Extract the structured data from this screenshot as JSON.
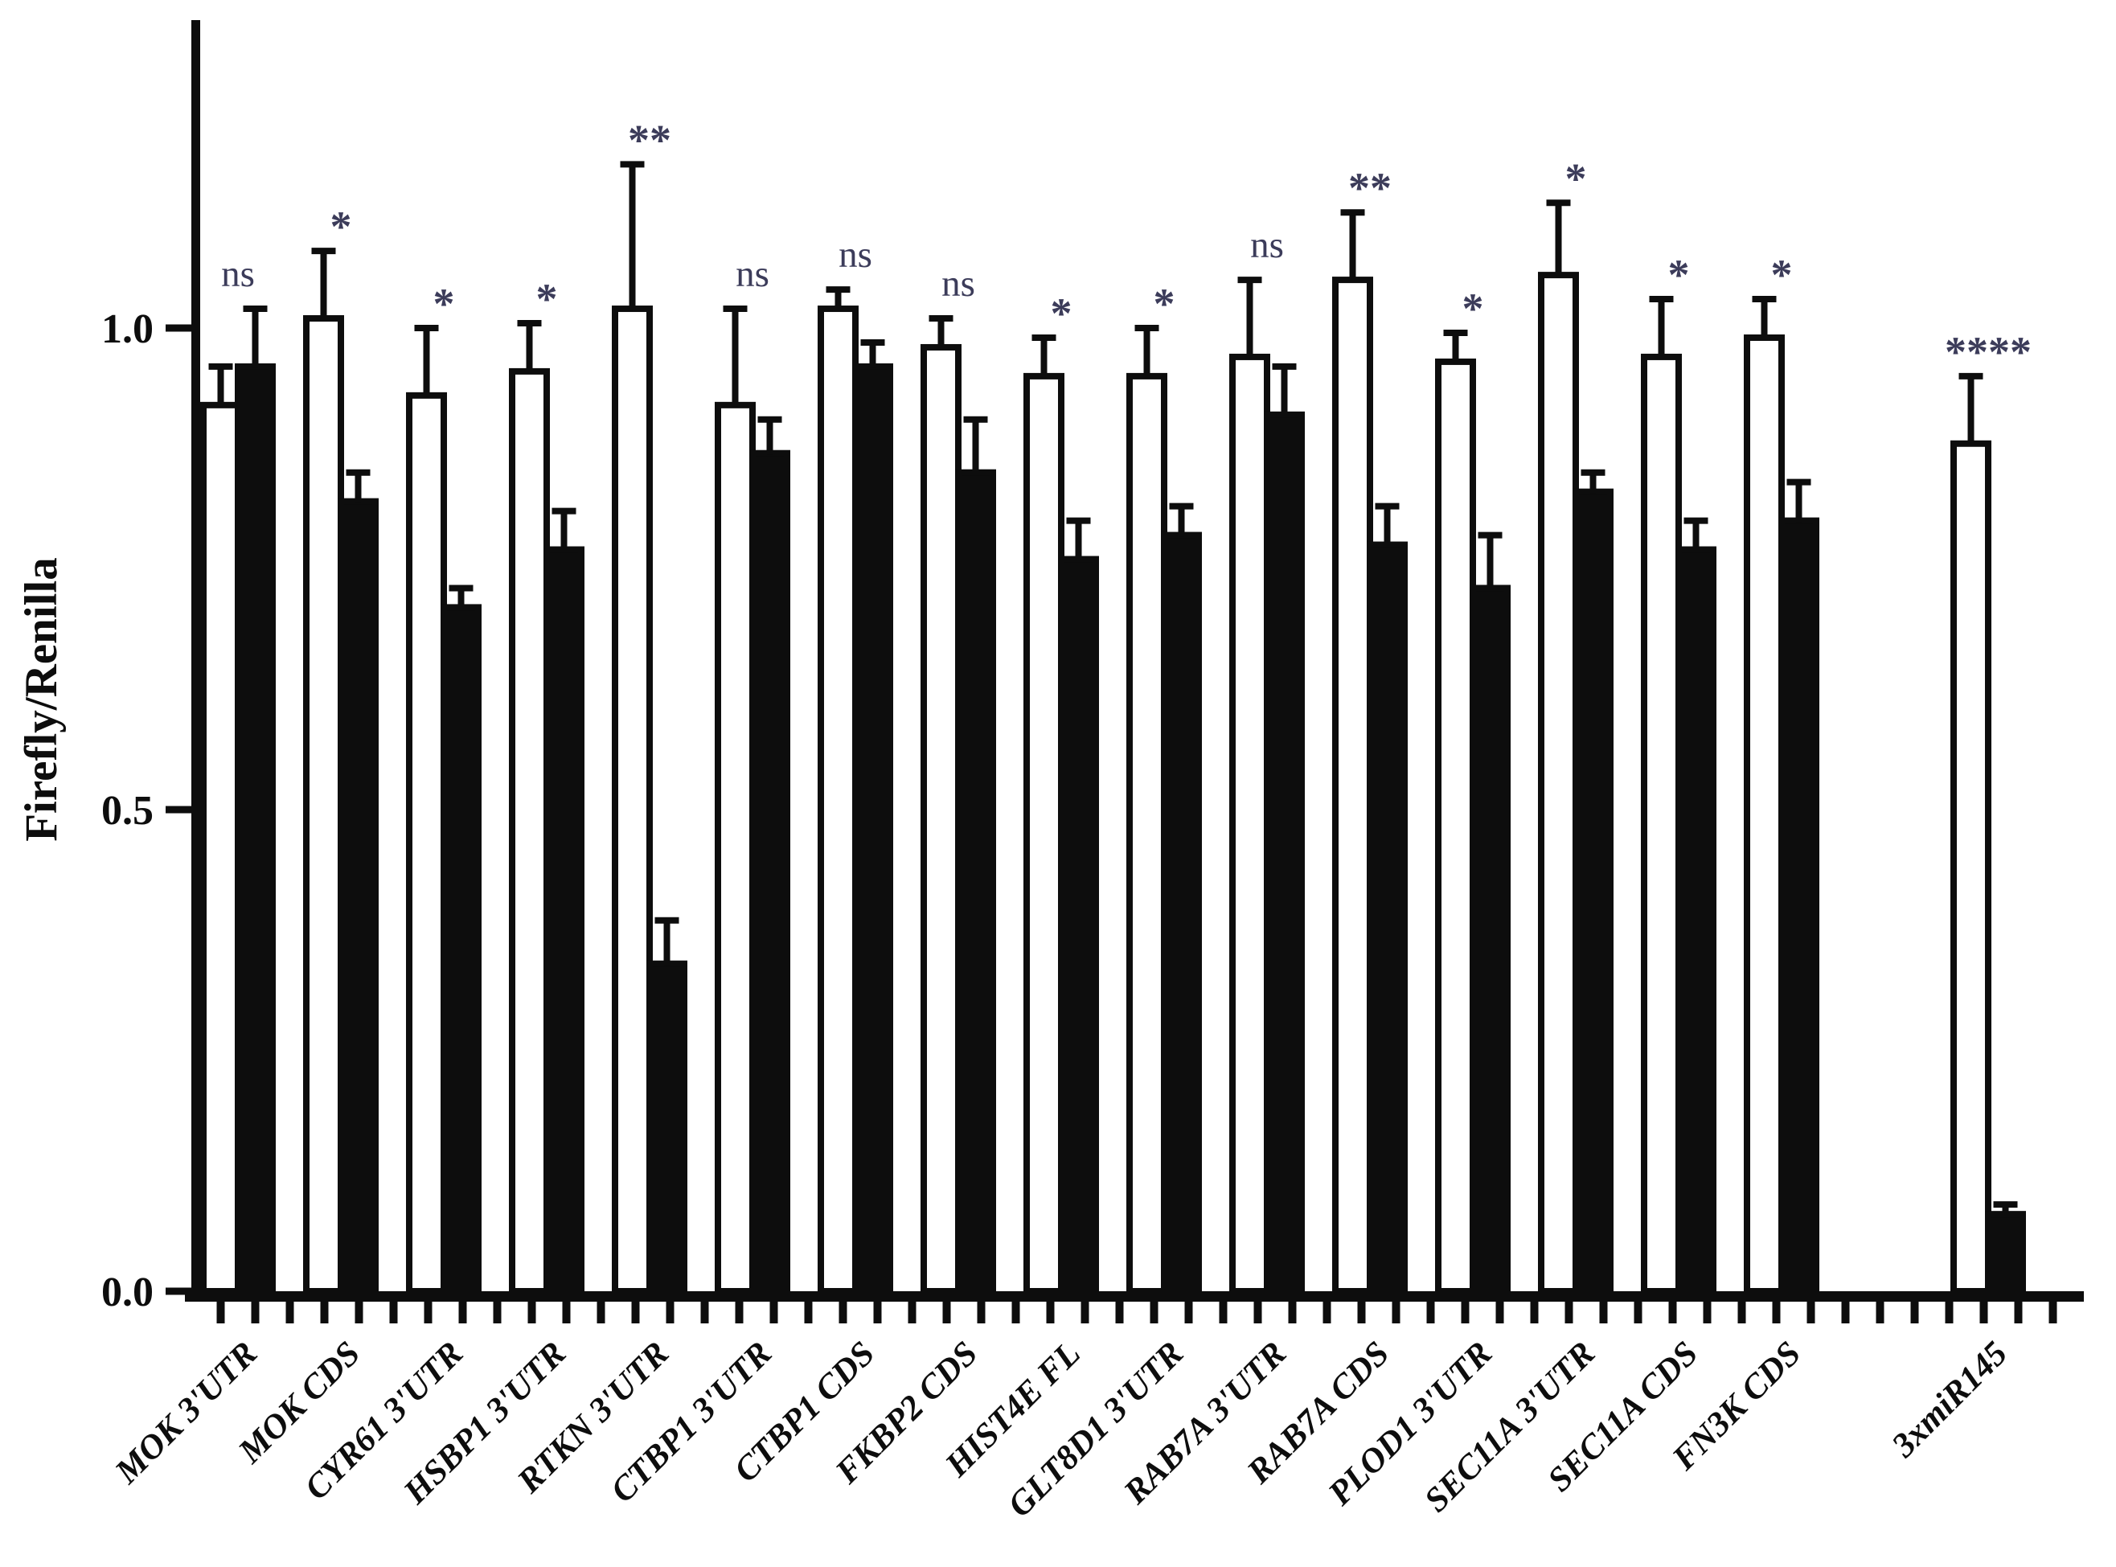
{
  "figure": {
    "background_color": "#ffffff",
    "axis_color": "#0d0d0d",
    "open_bar_fill": "#ffffff",
    "filled_bar_fill": "#0d0d0d",
    "annotation_color": "#3c3c5a"
  },
  "chart_data": {
    "type": "bar",
    "title": "",
    "xlabel": "",
    "ylabel": "Firefly/Renilla",
    "ylim": [
      0.0,
      1.32
    ],
    "yticks": [
      0.0,
      0.5,
      1.0
    ],
    "ytick_labels": [
      "0.0",
      "0.5",
      "1.0"
    ],
    "grid": false,
    "legend_position": "none",
    "bar_grouping": "pairs of open (white) and filled (black) bars per category",
    "categories": [
      "MOK 3'UTR",
      "MOK CDS",
      "CYR61 3'UTR",
      "HSBP1 3'UTR",
      "RTKN 3'UTR",
      "CTBP1 3'UTR",
      "CTBP1 CDS",
      "FKBP2 CDS",
      "HIST4E FL",
      "GLT8D1 3'UTR",
      "RAB7A 3'UTR",
      "RAB7A CDS",
      "PLOD1 3'UTR",
      "SEC11A 3'UTR",
      "SEC11A CDS",
      "FN3K CDS",
      "3xmiR145"
    ],
    "series": [
      {
        "name": "open_bars",
        "values": [
          0.92,
          1.01,
          0.93,
          0.955,
          1.02,
          0.92,
          1.02,
          0.98,
          0.95,
          0.95,
          0.97,
          1.05,
          0.965,
          1.055,
          0.97,
          0.99,
          0.88
        ],
        "errors": [
          0.04,
          0.07,
          0.07,
          0.05,
          0.15,
          0.1,
          0.02,
          0.03,
          0.04,
          0.05,
          0.08,
          0.07,
          0.03,
          0.075,
          0.06,
          0.04,
          0.07
        ]
      },
      {
        "name": "filled_bars",
        "values": [
          0.96,
          0.82,
          0.71,
          0.77,
          0.34,
          0.87,
          0.96,
          0.85,
          0.76,
          0.785,
          0.91,
          0.775,
          0.73,
          0.83,
          0.77,
          0.8,
          0.08
        ],
        "errors": [
          0.06,
          0.03,
          0.02,
          0.04,
          0.045,
          0.035,
          0.025,
          0.055,
          0.04,
          0.03,
          0.05,
          0.04,
          0.055,
          0.02,
          0.03,
          0.04,
          0.01
        ]
      }
    ],
    "significance_markers": [
      "ns",
      "*",
      "*",
      "*",
      "**",
      "ns",
      "ns",
      "ns",
      "*",
      "*",
      "ns",
      "**",
      "*",
      "*",
      "*",
      "*",
      "****"
    ]
  }
}
